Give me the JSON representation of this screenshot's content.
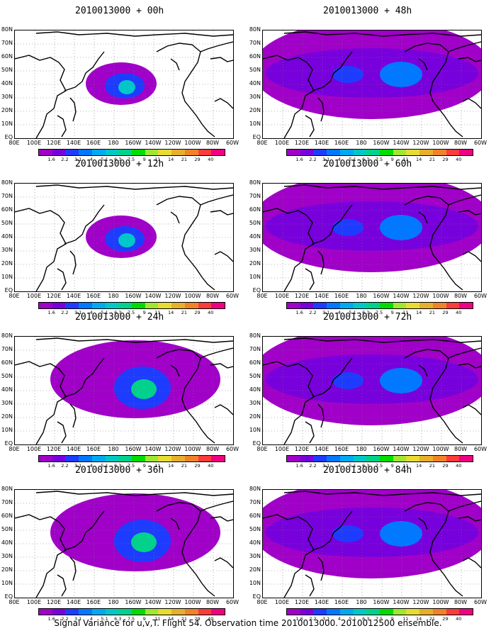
{
  "panels": [
    {
      "id": "p00",
      "title": "2010013000 + 00h",
      "coverage": "low"
    },
    {
      "id": "p48",
      "title": "2010013000 + 48h",
      "coverage": "wide"
    },
    {
      "id": "p12",
      "title": "2010013000 + 12h",
      "coverage": "low"
    },
    {
      "id": "p60",
      "title": "2010013000 + 60h",
      "coverage": "wide"
    },
    {
      "id": "p24",
      "title": "2010013000 + 24h",
      "coverage": "mid"
    },
    {
      "id": "p72",
      "title": "2010013000 + 72h",
      "coverage": "wide"
    },
    {
      "id": "p36",
      "title": "2010013000 + 36h",
      "coverage": "mid"
    },
    {
      "id": "p84",
      "title": "2010013000 + 84h",
      "coverage": "wide"
    }
  ],
  "lat_labels": [
    "80N",
    "70N",
    "60N",
    "50N",
    "40N",
    "30N",
    "20N",
    "10N",
    "EQ"
  ],
  "lon_labels": [
    "80E",
    "100E",
    "120E",
    "140E",
    "160E",
    "180",
    "160W",
    "140W",
    "120W",
    "100W",
    "80W",
    "60W"
  ],
  "colorbar": {
    "levels": [
      "1.6",
      "2.2",
      "3.1",
      "4",
      "5.1",
      "6.3",
      "7.5",
      "9",
      "11",
      "14",
      "21",
      "29",
      "40"
    ],
    "colors": [
      "#a000c8",
      "#7800dc",
      "#1e3cff",
      "#0078ff",
      "#00aaf0",
      "#00c8c8",
      "#00d28c",
      "#00dc00",
      "#a0e632",
      "#e6dc32",
      "#e6af2d",
      "#f08228",
      "#fa3c3c",
      "#f00082"
    ]
  },
  "caption": "Signal Variance for u,v,T. Flight 54. Observation time 2010013000. 2010012500 ensemble."
}
